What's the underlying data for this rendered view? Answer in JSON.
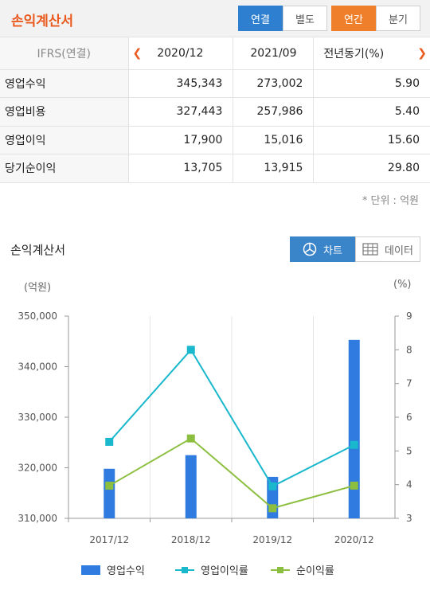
{
  "header": {
    "title": "손익계산서",
    "tabs_scope": [
      "연결",
      "별도"
    ],
    "tabs_period": [
      "연간",
      "분기"
    ]
  },
  "table": {
    "label_header": "IFRS(연결)",
    "columns": [
      "2020/12",
      "2021/09",
      "전년동기(%)"
    ],
    "rows": [
      {
        "label": "영업수익",
        "values": [
          "345,343",
          "273,002",
          "5.90"
        ]
      },
      {
        "label": "영업비용",
        "values": [
          "327,443",
          "257,986",
          "5.40"
        ]
      },
      {
        "label": "영업이익",
        "values": [
          "17,900",
          "15,016",
          "15.60"
        ]
      },
      {
        "label": "당기순이익",
        "values": [
          "13,705",
          "13,915",
          "29.80"
        ]
      }
    ],
    "unit_note": "* 단위 : 억원"
  },
  "chart_section": {
    "title": "손익계산서",
    "toggle_chart": "차트",
    "toggle_data": "데이터",
    "left_unit": "(억원)",
    "right_unit": "(%)"
  },
  "chart_data": {
    "type": "bar",
    "categories": [
      "2017/12",
      "2018/12",
      "2019/12",
      "2020/12"
    ],
    "ylim_left": [
      310000,
      350000
    ],
    "left_ticks": [
      310000,
      320000,
      330000,
      340000,
      350000
    ],
    "left_tick_labels": [
      "310,000",
      "320,000",
      "330,000",
      "340,000",
      "350,000"
    ],
    "ylim_right": [
      3,
      9
    ],
    "right_ticks": [
      3,
      4,
      5,
      6,
      7,
      8,
      9
    ],
    "series": [
      {
        "name": "영업수익",
        "kind": "bar",
        "axis": "left",
        "color": "#2f7bdf",
        "values": [
          319800,
          322500,
          318200,
          345300
        ]
      },
      {
        "name": "영업이익률",
        "kind": "line",
        "axis": "right",
        "color": "#19b8cc",
        "values": [
          5.27,
          8.0,
          3.95,
          5.18
        ]
      },
      {
        "name": "순이익률",
        "kind": "line",
        "axis": "right",
        "color": "#8cbf3f",
        "values": [
          3.97,
          5.37,
          3.3,
          3.97
        ]
      }
    ],
    "grid": "vertical"
  }
}
